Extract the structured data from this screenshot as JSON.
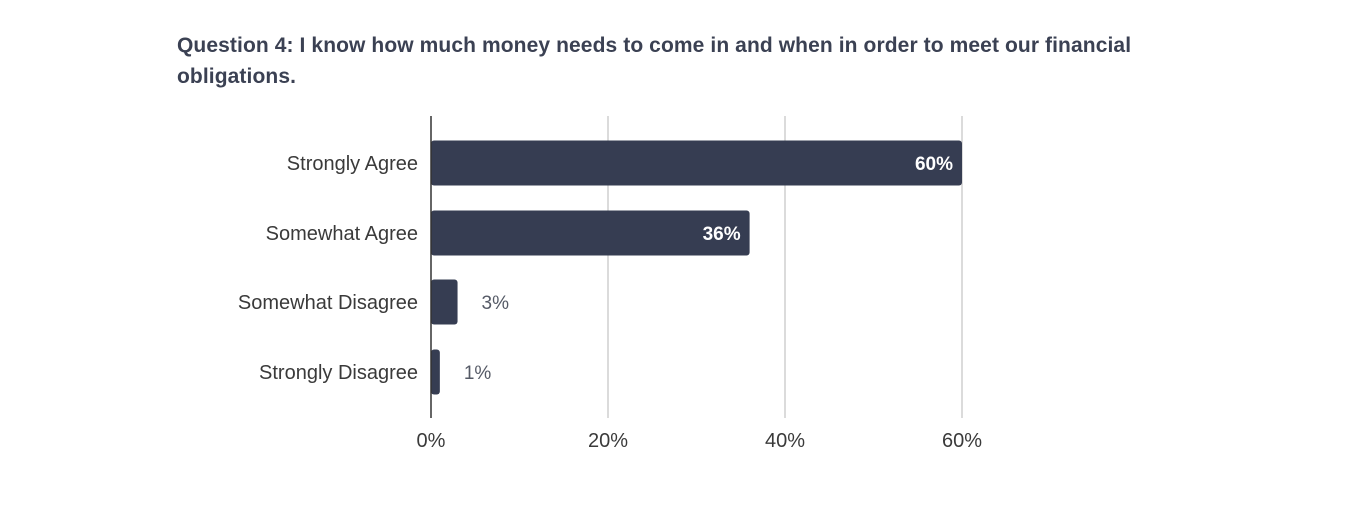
{
  "chart_data": {
    "type": "bar",
    "orientation": "horizontal",
    "title": "Question 4: I know how much money needs to come in and when in order to meet our financial obligations.",
    "categories": [
      "Strongly Agree",
      "Somewhat Agree",
      "Somewhat Disagree",
      "Strongly Disagree"
    ],
    "values": [
      60,
      36,
      3,
      1
    ],
    "value_labels": [
      "60%",
      "36%",
      "3%",
      "1%"
    ],
    "xlim": [
      0,
      60
    ],
    "xticks": [
      0,
      20,
      40,
      60
    ],
    "xtick_labels": [
      "0%",
      "20%",
      "40%",
      "60%"
    ],
    "xlabel": "",
    "ylabel": "",
    "grid": true,
    "bar_color": "#363d52",
    "grid_color": "#cfcfcf"
  }
}
